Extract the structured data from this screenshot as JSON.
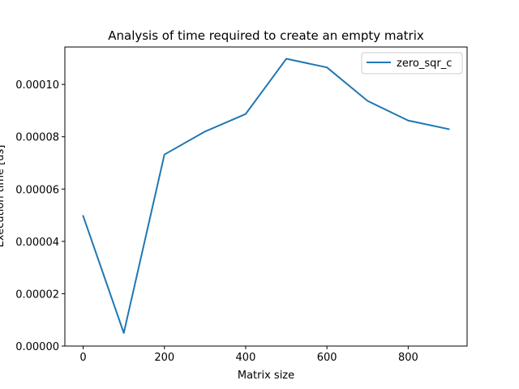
{
  "chart_data": {
    "type": "line",
    "title": "Analysis of time required to create an empty matrix",
    "xlabel": "Matrix size",
    "ylabel": "Execution time [us]",
    "xlim": [
      -45,
      945
    ],
    "ylim": [
      0,
      0.0001143
    ],
    "xticks": [
      0,
      200,
      400,
      600,
      800
    ],
    "xtick_labels": [
      "0",
      "200",
      "400",
      "600",
      "800"
    ],
    "yticks": [
      0,
      2e-05,
      4e-05,
      6e-05,
      8e-05,
      0.0001
    ],
    "ytick_labels": [
      "0.00000",
      "0.00002",
      "0.00004",
      "0.00006",
      "0.00008",
      "0.00010"
    ],
    "grid": false,
    "legend_position": "top-right",
    "series": [
      {
        "name": "zero_sqr_c",
        "color": "#1f77b4",
        "x": [
          0,
          100,
          200,
          300,
          400,
          500,
          600,
          700,
          800,
          900
        ],
        "y": [
          4.97e-05,
          5e-06,
          7.32e-05,
          8.2e-05,
          8.87e-05,
          0.0001098,
          0.0001065,
          9.37e-05,
          8.62e-05,
          8.29e-05
        ]
      }
    ]
  }
}
